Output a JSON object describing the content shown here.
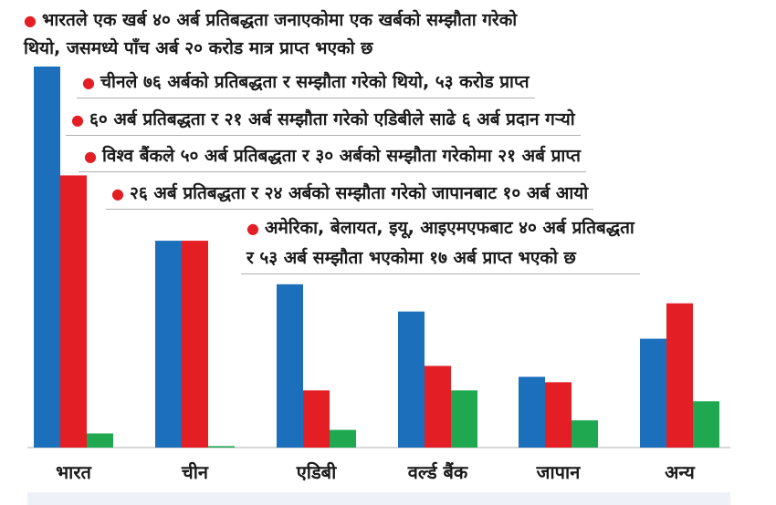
{
  "notes": [
    {
      "line1": "भारतले एक खर्ब ४० अर्ब प्रतिबद्धता जनाएकोमा एक खर्बको सम्झौता गरेको",
      "line2": "थियो, जसमध्ये पाँच अर्ब २० करोड मात्र प्राप्त भएको छ"
    },
    {
      "line1": "चीनले ७६ अर्बको प्रतिबद्धता र सम्झौता गरेको थियो, ५३ करोड प्राप्त"
    },
    {
      "line1": "६० अर्ब प्रतिबद्धता र २१ अर्ब सम्झौता गरेको एडिबीले साढे ६ अर्ब प्रदान गर्‍यो"
    },
    {
      "line1": "विश्व बैंकले ५० अर्ब प्रतिबद्धता र ३० अर्बको सम्झौता गरेकोमा २१ अर्ब प्राप्त"
    },
    {
      "line1": "२६ अर्ब प्रतिबद्धता र २४ अर्बको सम्झौता गरेको जापानबाट १० अर्ब आयो"
    },
    {
      "line1": "अमेरिका, बेलायत, इयू, आइएमएफबाट ४० अर्ब प्रतिबद्धता",
      "line2": "र ५३ अर्ब सम्झौता भएकोमा १७ अर्ब प्राप्त भएको छ"
    }
  ],
  "chart_data": {
    "type": "bar",
    "categories": [
      "भारत",
      "चीन",
      "एडिबी",
      "वर्ल्ड बैंक",
      "जापान",
      "अन्य"
    ],
    "series": [
      {
        "values": [
          140,
          76,
          60,
          50,
          26,
          40
        ],
        "color": "#1c6fba"
      },
      {
        "values": [
          100,
          76,
          21,
          30,
          24,
          53
        ],
        "color": "#e31e24"
      },
      {
        "values": [
          5.2,
          0.53,
          6.5,
          21,
          10,
          17
        ],
        "color": "#1fa84f"
      }
    ],
    "ylim": [
      0,
      140
    ],
    "grid": false,
    "legend": "none"
  }
}
